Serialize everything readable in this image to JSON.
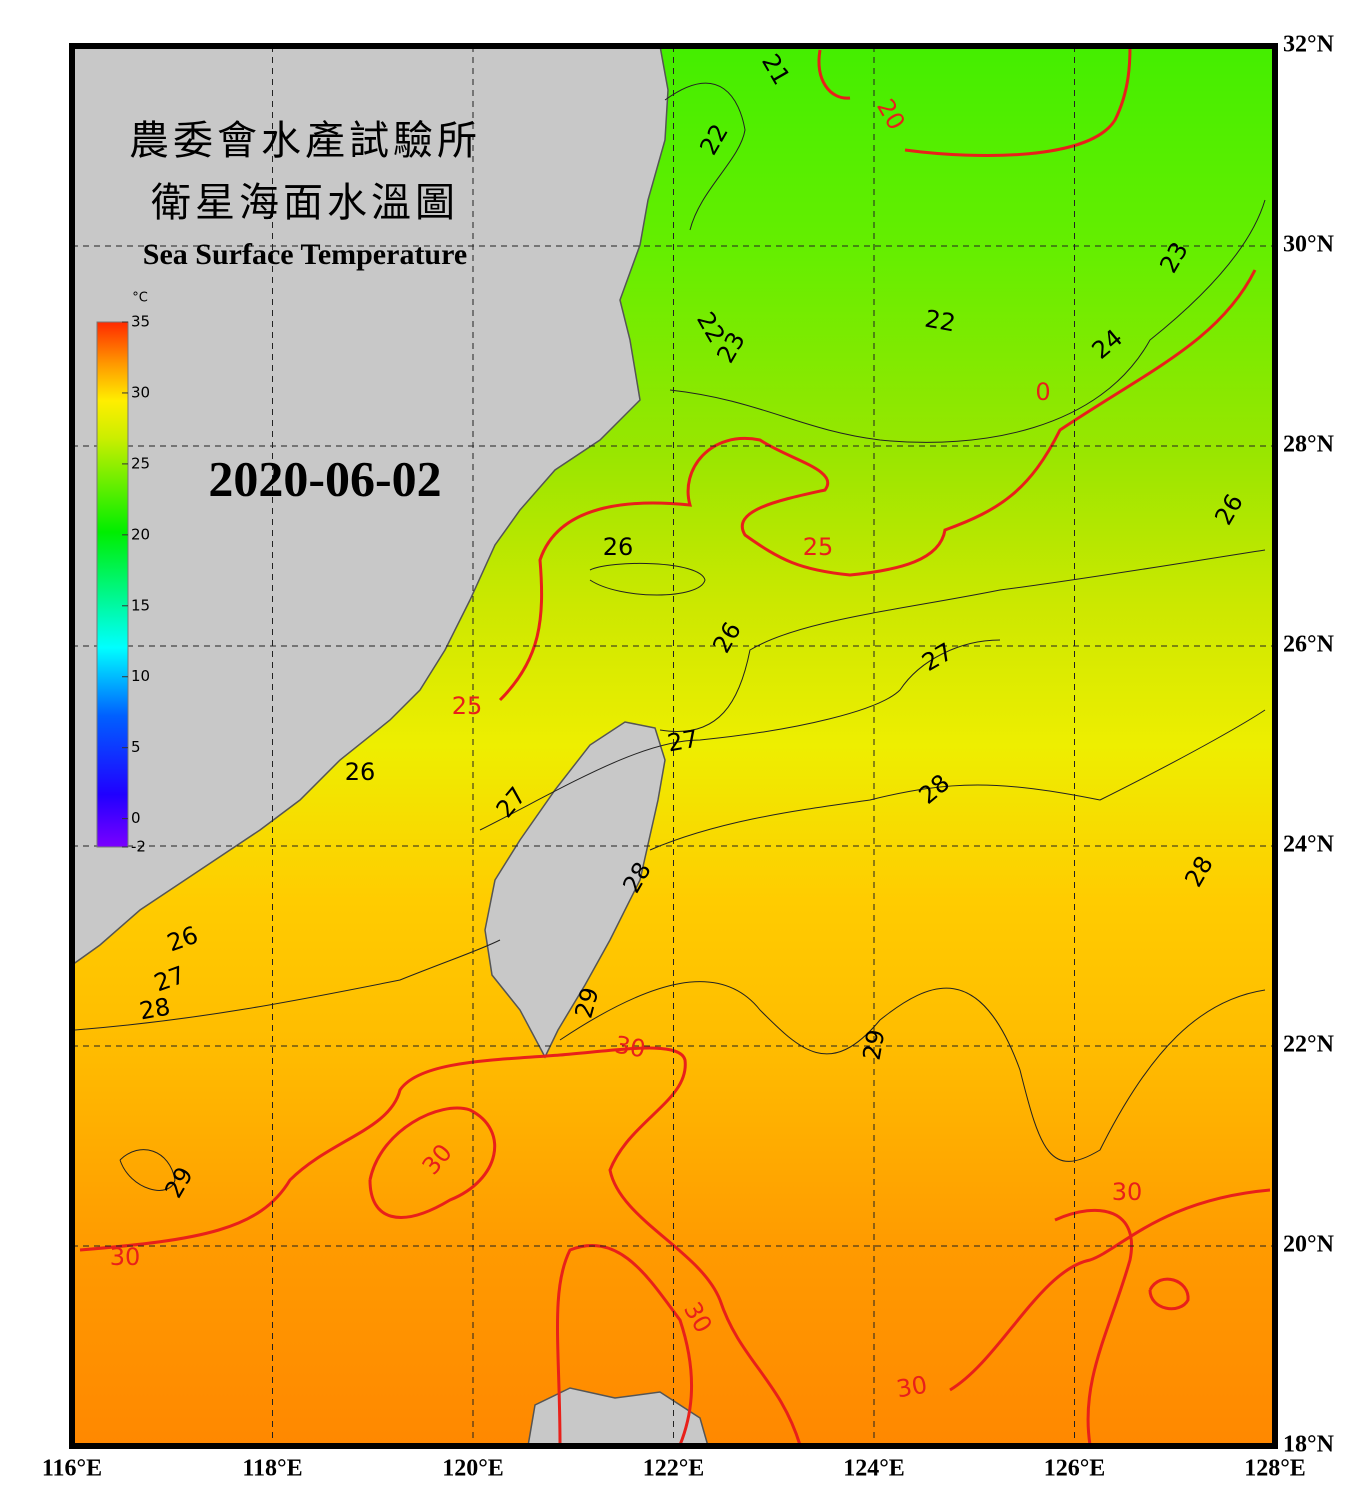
{
  "map": {
    "title_lines": [
      "農委會水產試驗所",
      "衛星海面水溫圖"
    ],
    "subtitle": "Sea Surface Temperature",
    "date": "2020-06-02",
    "colorbar": {
      "unit": "°C",
      "lim": [
        -2,
        35
      ],
      "ticks": [
        -2,
        0,
        5,
        10,
        15,
        20,
        25,
        30,
        35
      ]
    },
    "xlim": [
      116,
      128
    ],
    "ylim": [
      18,
      32
    ],
    "xticks": [
      {
        "value": 116,
        "label": "116°E"
      },
      {
        "value": 118,
        "label": "118°E"
      },
      {
        "value": 120,
        "label": "120°E"
      },
      {
        "value": 122,
        "label": "122°E"
      },
      {
        "value": 124,
        "label": "124°E"
      },
      {
        "value": 126,
        "label": "126°E"
      },
      {
        "value": 128,
        "label": "128°E"
      }
    ],
    "yticks": [
      {
        "value": 18,
        "label": "18°N"
      },
      {
        "value": 20,
        "label": "20°N"
      },
      {
        "value": 22,
        "label": "22°N"
      },
      {
        "value": 24,
        "label": "24°N"
      },
      {
        "value": 26,
        "label": "26°N"
      },
      {
        "value": 28,
        "label": "28°N"
      },
      {
        "value": 30,
        "label": "30°N"
      },
      {
        "value": 32,
        "label": "32°N"
      }
    ],
    "contour_labels": [
      "21",
      "20",
      "22",
      "23",
      "22",
      "23",
      "22",
      "24",
      "0",
      "26",
      "26",
      "25",
      "26",
      "27",
      "25",
      "27",
      "26",
      "28",
      "27",
      "28",
      "28",
      "26",
      "27",
      "28",
      "29",
      "30",
      "29",
      "30",
      "29",
      "30",
      "30",
      "30",
      "30"
    ]
  }
}
